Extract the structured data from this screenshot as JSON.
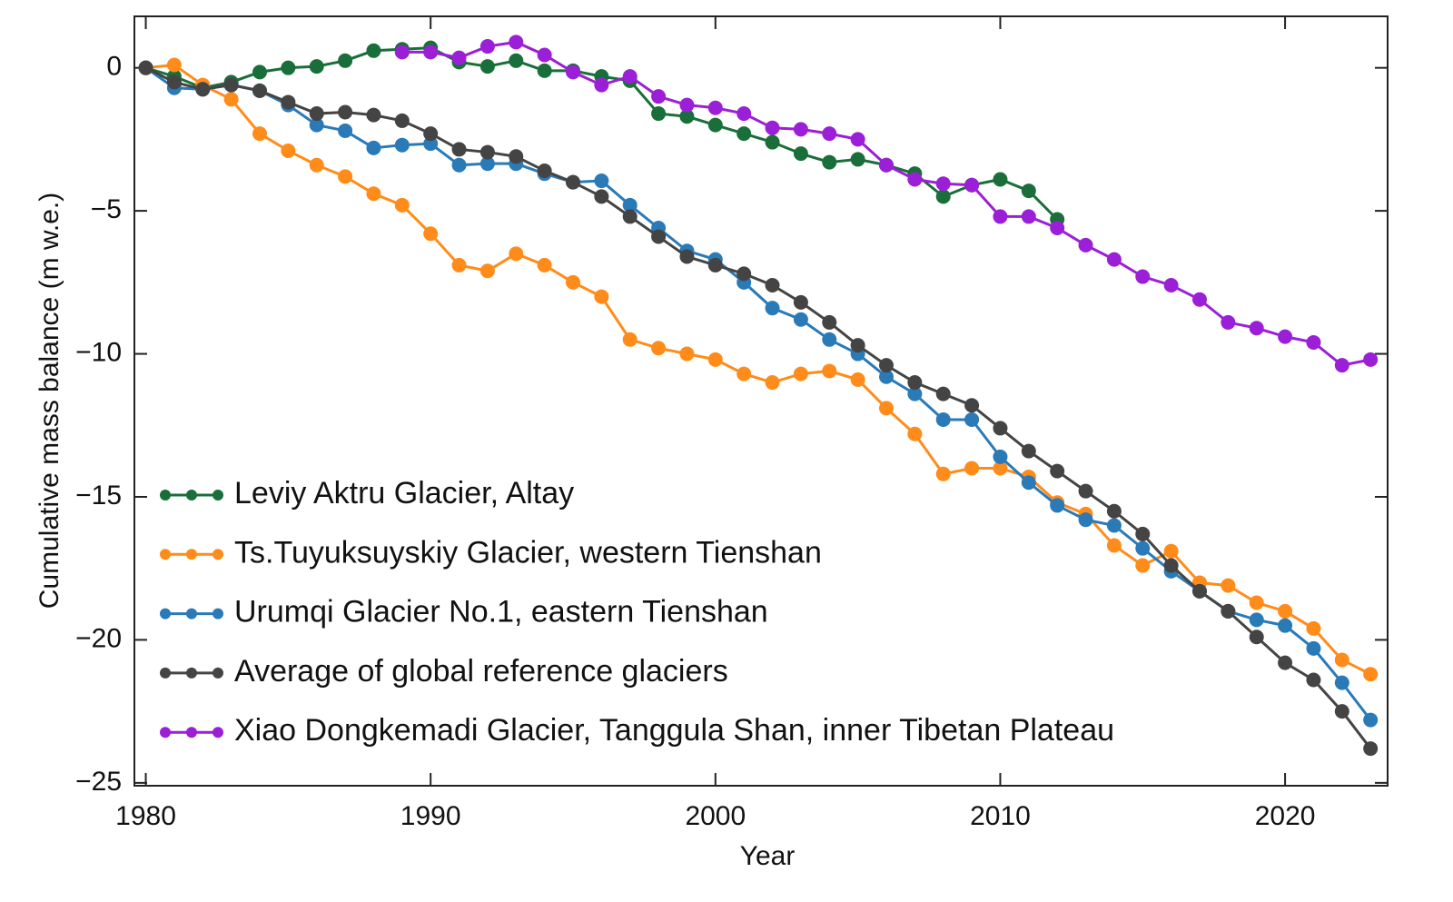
{
  "chart_data": {
    "type": "line",
    "x_label": "Year",
    "y_label": "Cumulative mass balance (m w.e.)",
    "x": [
      1980,
      1981,
      1982,
      1983,
      1984,
      1985,
      1986,
      1987,
      1988,
      1989,
      1990,
      1991,
      1992,
      1993,
      1994,
      1995,
      1996,
      1997,
      1998,
      1999,
      2000,
      2001,
      2002,
      2003,
      2004,
      2005,
      2006,
      2007,
      2008,
      2009,
      2010,
      2011,
      2012,
      2013,
      2014,
      2015,
      2016,
      2017,
      2018,
      2019,
      2020,
      2021,
      2022,
      2023
    ],
    "series": [
      {
        "name": "Leviy Aktru Glacier, Altay",
        "color": "#1a6e3a",
        "values": [
          0,
          -0.3,
          -0.7,
          -0.5,
          -0.15,
          0,
          0.05,
          0.25,
          0.6,
          0.65,
          0.7,
          0.2,
          0.05,
          0.25,
          -0.1,
          -0.1,
          -0.3,
          -0.45,
          -1.6,
          -1.7,
          -2.0,
          -2.3,
          -2.6,
          -3.0,
          -3.3,
          -3.2,
          -3.4,
          -3.7,
          -4.5,
          -4.1,
          -3.9,
          -4.3,
          -5.3,
          null,
          null,
          null,
          null,
          null,
          null,
          null,
          null,
          null,
          null,
          null
        ]
      },
      {
        "name": "Ts.Tuyuksuyskiy Glacier, western Tienshan",
        "color": "#ff8c1a",
        "values": [
          0,
          0.1,
          -0.6,
          -1.1,
          -2.3,
          -2.9,
          -3.4,
          -3.8,
          -4.4,
          -4.8,
          -5.8,
          -6.9,
          -7.1,
          -6.5,
          -6.9,
          -7.5,
          -8.0,
          -9.5,
          -9.8,
          -10.0,
          -10.2,
          -10.7,
          -11.0,
          -10.7,
          -10.6,
          -10.9,
          -11.9,
          -12.8,
          -14.2,
          -14.0,
          -14.0,
          -14.3,
          -15.2,
          -15.6,
          -16.7,
          -17.4,
          -16.9,
          -18.0,
          -18.1,
          -18.7,
          -19.0,
          -19.6,
          -20.7,
          -21.2
        ]
      },
      {
        "name": "Urumqi Glacier No.1, eastern Tienshan",
        "color": "#2a7ab8",
        "values": [
          0,
          -0.7,
          -0.75,
          -0.6,
          -0.8,
          -1.3,
          -2.0,
          -2.2,
          -2.8,
          -2.7,
          -2.65,
          -3.4,
          -3.35,
          -3.35,
          -3.7,
          -4.0,
          -3.95,
          -4.8,
          -5.6,
          -6.4,
          -6.7,
          -7.5,
          -8.4,
          -8.8,
          -9.5,
          -10.0,
          -10.8,
          -11.4,
          -12.3,
          -12.3,
          -13.6,
          -14.5,
          -15.3,
          -15.8,
          -16.0,
          -16.8,
          -17.6,
          -18.3,
          -19.0,
          -19.3,
          -19.5,
          -20.3,
          -21.5,
          -22.8
        ]
      },
      {
        "name": "Average of global reference glaciers",
        "color": "#444444",
        "values": [
          0,
          -0.5,
          -0.75,
          -0.6,
          -0.8,
          -1.2,
          -1.6,
          -1.55,
          -1.65,
          -1.85,
          -2.3,
          -2.85,
          -2.95,
          -3.1,
          -3.6,
          -4.0,
          -4.5,
          -5.2,
          -5.9,
          -6.6,
          -6.9,
          -7.2,
          -7.6,
          -8.2,
          -8.9,
          -9.7,
          -10.4,
          -11.0,
          -11.4,
          -11.8,
          -12.6,
          -13.4,
          -14.1,
          -14.8,
          -15.5,
          -16.3,
          -17.4,
          -18.3,
          -19.0,
          -19.9,
          -20.8,
          -21.4,
          -22.5,
          -23.8
        ]
      },
      {
        "name": "Xiao Dongkemadi Glacier, Tanggula Shan, inner Tibetan Plateau",
        "color": "#9b1fd6",
        "values": [
          null,
          null,
          null,
          null,
          null,
          null,
          null,
          null,
          null,
          0.55,
          0.55,
          0.35,
          0.75,
          0.9,
          0.45,
          -0.15,
          -0.6,
          -0.3,
          -1.0,
          -1.3,
          -1.4,
          -1.6,
          -2.1,
          -2.15,
          -2.3,
          -2.5,
          -3.4,
          -3.9,
          -4.05,
          -4.1,
          -5.2,
          -5.2,
          -5.6,
          -6.2,
          -6.7,
          -7.3,
          -7.6,
          -8.1,
          -8.9,
          -9.1,
          -9.4,
          -9.6,
          -10.4,
          -10.2
        ]
      }
    ],
    "xlim": [
      1979.6,
      2023.6
    ],
    "ylim": [
      -25.1,
      1.8
    ],
    "xticks": [
      1980,
      1990,
      2000,
      2010,
      2020
    ],
    "yticks": [
      {
        "value": 0,
        "label": "0"
      },
      {
        "value": -5,
        "label": "−5"
      },
      {
        "value": -10,
        "label": "−10"
      },
      {
        "value": -15,
        "label": "−15"
      },
      {
        "value": -20,
        "label": "−20"
      },
      {
        "value": -25,
        "label": "−25"
      }
    ],
    "legend": "lower left"
  }
}
